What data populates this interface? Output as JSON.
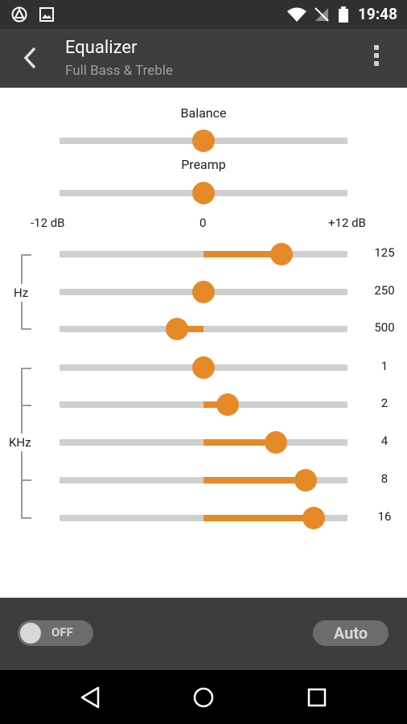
{
  "status_bar": {
    "time": "19:48",
    "icons": [
      "app-notification-icon",
      "image-notification-icon",
      "wifi-icon",
      "no-signal-icon",
      "battery-icon"
    ]
  },
  "action_bar": {
    "title": "Equalizer",
    "subtitle": "Full Bass & Treble"
  },
  "labels": {
    "balance": "Balance",
    "preamp": "Preamp",
    "min": "-12 dB",
    "mid": "0",
    "max": "+12 dB",
    "hz": "Hz",
    "khz": "KHz"
  },
  "sliders": {
    "balance": {
      "value": 0
    },
    "preamp": {
      "value": 0
    }
  },
  "bands": [
    {
      "freq": "125",
      "db": 6.5
    },
    {
      "freq": "250",
      "db": 0
    },
    {
      "freq": "500",
      "db": -2.2
    },
    {
      "freq": "1",
      "db": 0
    },
    {
      "freq": "2",
      "db": 2.0
    },
    {
      "freq": "4",
      "db": 6.0
    },
    {
      "freq": "8",
      "db": 8.5
    },
    {
      "freq": "16",
      "db": 9.2
    }
  ],
  "bottom": {
    "toggle_label": "OFF",
    "auto_label": "Auto"
  },
  "colors": {
    "accent": "#e68a29",
    "track": "#cfcfcf"
  }
}
